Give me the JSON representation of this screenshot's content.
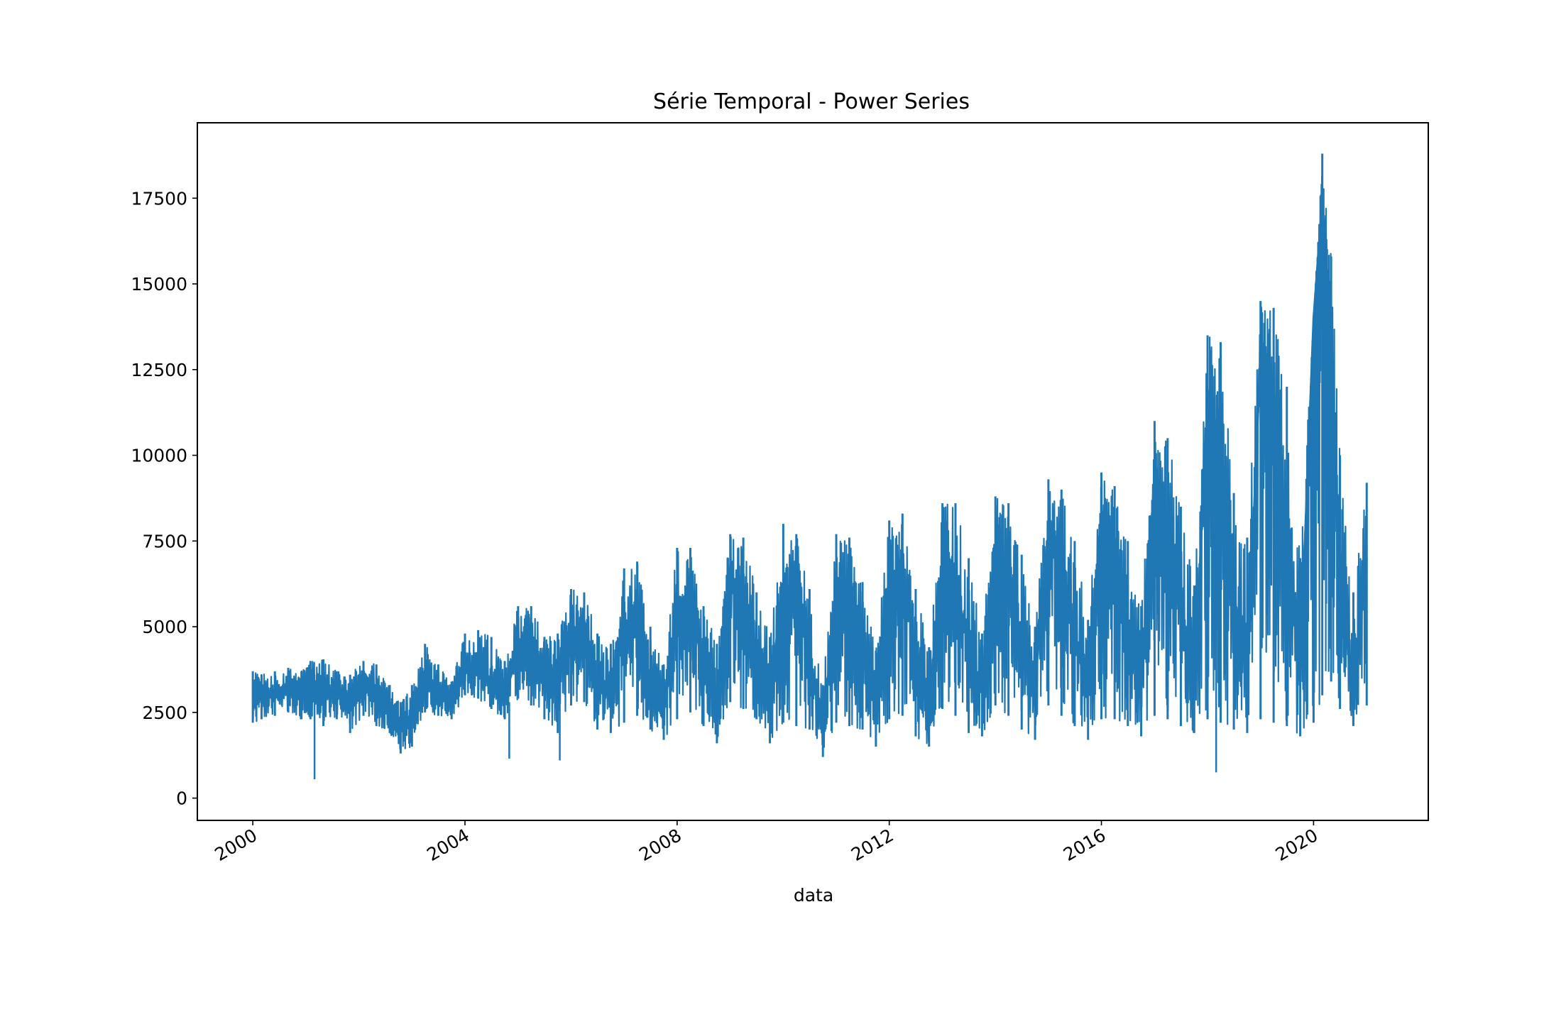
{
  "chart_data": {
    "type": "line",
    "title": "Série Temporal - Power Series",
    "xlabel": "data",
    "ylabel": "",
    "xlim": [
      "1998-12-15",
      "2022-03-01"
    ],
    "ylim": [
      -650,
      19700
    ],
    "x_ticks": [
      "2000",
      "2004",
      "2008",
      "2012",
      "2016",
      "2020"
    ],
    "y_ticks": [
      "0",
      "2500",
      "5000",
      "7500",
      "10000",
      "12500",
      "15000",
      "17500"
    ],
    "grid": false,
    "legend": "none",
    "colors": {
      "line": "#1f77b4",
      "axes": "#000000",
      "background": "#ffffff"
    },
    "series": [
      {
        "x": [
          "2000-01-01",
          "2000-03-01",
          "2000-06-01",
          "2000-09-01",
          "2000-12-01",
          "2001-02-01",
          "2001-05-01",
          "2001-08-01",
          "2001-11-01",
          "2002-02-01",
          "2002-05-01",
          "2002-08-01",
          "2002-10-15",
          "2003-01-01",
          "2003-04-01",
          "2003-07-01",
          "2003-10-01",
          "2004-01-01",
          "2004-04-01",
          "2004-07-01",
          "2004-10-01",
          "2005-01-01",
          "2005-04-01",
          "2005-07-01",
          "2005-10-01",
          "2006-01-01",
          "2006-04-01",
          "2006-07-01",
          "2006-10-01",
          "2007-01-01",
          "2007-04-01",
          "2007-07-01",
          "2007-10-01",
          "2008-01-01",
          "2008-04-01",
          "2008-07-01",
          "2008-10-01",
          "2009-01-01",
          "2009-04-01",
          "2009-07-01",
          "2009-10-01",
          "2010-01-01",
          "2010-04-01",
          "2010-07-01",
          "2010-10-01",
          "2011-01-01",
          "2011-04-01",
          "2011-07-01",
          "2011-10-01",
          "2012-01-01",
          "2012-04-01",
          "2012-07-01",
          "2012-10-01",
          "2013-01-01",
          "2013-04-01",
          "2013-07-01",
          "2013-10-01",
          "2014-01-01",
          "2014-04-01",
          "2014-07-01",
          "2014-10-01",
          "2015-01-01",
          "2015-04-01",
          "2015-07-01",
          "2015-10-01",
          "2016-01-01",
          "2016-04-01",
          "2016-07-01",
          "2016-10-01",
          "2017-01-01",
          "2017-04-01",
          "2017-07-01",
          "2017-10-01",
          "2018-01-01",
          "2018-04-01",
          "2018-07-01",
          "2018-10-01",
          "2019-01-01",
          "2019-04-01",
          "2019-07-01",
          "2019-10-01",
          "2020-01-01",
          "2020-03-01",
          "2020-05-01",
          "2020-07-01",
          "2020-10-01",
          "2021-01-01"
        ],
        "y": [
          3000,
          3200,
          2900,
          3400,
          3300,
          3500,
          3000,
          3100,
          2800,
          3400,
          3000,
          2600,
          2000,
          2400,
          3400,
          3100,
          2900,
          3700,
          3900,
          3200,
          3000,
          4200,
          4600,
          3600,
          3500,
          4800,
          5200,
          3200,
          3000,
          4900,
          5400,
          3200,
          2500,
          5200,
          5900,
          3600,
          3000,
          6000,
          6300,
          4200,
          3200,
          6100,
          6200,
          4000,
          2000,
          6100,
          6200,
          4300,
          3000,
          6500,
          6800,
          4200,
          2800,
          6800,
          6400,
          4300,
          3200,
          7000,
          6900,
          4500,
          3300,
          7800,
          7200,
          4500,
          3200,
          8200,
          7000,
          4600,
          3200,
          9500,
          8200,
          5200,
          3300,
          11500,
          10000,
          6000,
          3500,
          13000,
          12000,
          7000,
          4000,
          14000,
          17500,
          13000,
          6000,
          3200,
          7000
        ],
        "y_low": [
          2200,
          2300,
          2400,
          2500,
          2300,
          2300,
          2100,
          2300,
          1900,
          2400,
          2100,
          1900,
          1300,
          1500,
          2500,
          2400,
          2300,
          3000,
          2900,
          2600,
          2300,
          2900,
          2700,
          2300,
          1900,
          2700,
          2800,
          2000,
          1900,
          2200,
          2400,
          2000,
          1700,
          2300,
          2500,
          2100,
          1600,
          2800,
          2600,
          2300,
          1600,
          2200,
          2100,
          2000,
          1200,
          2200,
          2100,
          2000,
          1500,
          2300,
          2400,
          1800,
          1500,
          2600,
          2400,
          1900,
          1800,
          2700,
          2400,
          2000,
          1700,
          2700,
          2400,
          2100,
          1700,
          2300,
          2300,
          2100,
          1800,
          2400,
          2300,
          2100,
          1900,
          2300,
          2200,
          2000,
          1900,
          2300,
          2200,
          2100,
          1800,
          2200,
          3000,
          3400,
          2600,
          2100,
          2700
        ],
        "y_high": [
          3700,
          3600,
          3700,
          3800,
          3700,
          4000,
          4050,
          3700,
          3600,
          4000,
          3900,
          3300,
          2800,
          3300,
          4500,
          3900,
          3400,
          4800,
          4900,
          4700,
          4000,
          5600,
          5600,
          4700,
          4800,
          6100,
          6000,
          4800,
          4500,
          6700,
          6900,
          5000,
          3900,
          7300,
          7300,
          5600,
          4500,
          7700,
          7600,
          6000,
          4700,
          8000,
          7700,
          6100,
          3300,
          7700,
          7600,
          6300,
          4300,
          8100,
          8300,
          6100,
          4400,
          8600,
          8600,
          7000,
          4800,
          8800,
          8600,
          7100,
          5000,
          9300,
          9000,
          7500,
          5200,
          9500,
          9100,
          7500,
          5600,
          11000,
          10500,
          8500,
          6200,
          13500,
          13300,
          8900,
          7600,
          14500,
          14300,
          12000,
          7000,
          14000,
          18800,
          15800,
          10000,
          6000,
          9200
        ]
      }
    ]
  }
}
